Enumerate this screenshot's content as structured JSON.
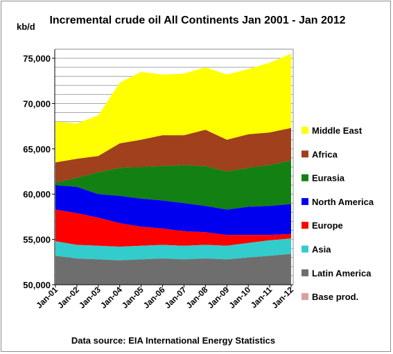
{
  "chart_data": {
    "type": "area",
    "title": "Incremental crude oil All Continents  Jan 2001 - Jan 2012",
    "ylabel": "kb/d",
    "source": "Data source: EIA International Energy Statistics",
    "ylim": [
      50000,
      76000
    ],
    "yticks": [
      50000,
      55000,
      60000,
      65000,
      70000,
      75000
    ],
    "ytick_labels": [
      "50,000",
      "55,000",
      "60,000",
      "65,000",
      "70,000",
      "75,000"
    ],
    "gridlines": "horizontal, every 1,000 kb/d",
    "legend_position": "right",
    "x": [
      "Jan-01",
      "Jan-02",
      "Jan-03",
      "Jan-04",
      "Jan-05",
      "Jan-06",
      "Jan-07",
      "Jan-08",
      "Jan-09",
      "Jan-10",
      "Jan-11",
      "Jan-12"
    ],
    "base": 50000,
    "series": [
      {
        "name": "Base prod.",
        "color": "#d9a0a0",
        "values": [
          50000,
          50000,
          50000,
          50000,
          50000,
          50000,
          50000,
          50000,
          50000,
          50000,
          50000,
          50000
        ]
      },
      {
        "name": "Latin America",
        "color": "#6e6e6e",
        "values": [
          53200,
          52900,
          52800,
          52700,
          52800,
          52900,
          52800,
          52900,
          52800,
          53000,
          53200,
          53400
        ]
      },
      {
        "name": "Asia",
        "color": "#33cccc",
        "values": [
          54800,
          54400,
          54300,
          54200,
          54300,
          54400,
          54300,
          54400,
          54300,
          54600,
          54900,
          55100
        ]
      },
      {
        "name": "Europe",
        "color": "#ff0000",
        "values": [
          58300,
          57900,
          57400,
          56800,
          56400,
          56200,
          55900,
          55800,
          55500,
          55500,
          55500,
          55600
        ]
      },
      {
        "name": "North America",
        "color": "#0000ee",
        "values": [
          61000,
          60800,
          60000,
          59800,
          59500,
          59300,
          59000,
          58700,
          58300,
          58600,
          58700,
          58900
        ]
      },
      {
        "name": "Eurasia",
        "color": "#138013",
        "values": [
          61300,
          61800,
          62400,
          62900,
          63000,
          63100,
          63200,
          63100,
          62500,
          62900,
          63200,
          63700
        ]
      },
      {
        "name": "Africa",
        "color": "#a0401c",
        "values": [
          63500,
          63900,
          64200,
          65600,
          66000,
          66500,
          66500,
          67100,
          66000,
          66600,
          66800,
          67300
        ]
      },
      {
        "name": "Middle East",
        "color": "#ffff00",
        "values": [
          68000,
          67800,
          68700,
          72300,
          73500,
          73200,
          73300,
          74000,
          73200,
          73800,
          74500,
          75500
        ]
      }
    ],
    "legend_order": [
      "Middle East",
      "Africa",
      "Eurasia",
      "North America",
      "Europe",
      "Asia",
      "Latin America",
      "Base prod."
    ]
  }
}
